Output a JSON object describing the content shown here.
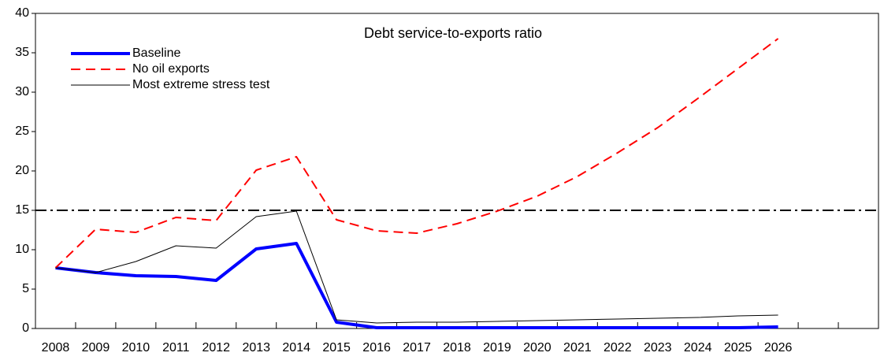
{
  "chart_data": {
    "type": "line",
    "title": "Debt service-to-exports ratio",
    "categories": [
      "2008",
      "2009",
      "2010",
      "2011",
      "2012",
      "2013",
      "2014",
      "2015",
      "2016",
      "2017",
      "2018",
      "2019",
      "2020",
      "2021",
      "2022",
      "2023",
      "2024",
      "2025",
      "2026",
      null,
      null
    ],
    "series": [
      {
        "name": "Baseline",
        "color": "#0000ff",
        "width": 4,
        "dash": "none",
        "values": [
          7.7,
          7.1,
          6.7,
          6.6,
          6.1,
          10.1,
          10.8,
          0.8,
          0.1,
          0.1,
          0.1,
          0.1,
          0.1,
          0.1,
          0.1,
          0.1,
          0.1,
          0.1,
          0.2,
          null,
          null
        ]
      },
      {
        "name": "No oil exports",
        "color": "#ff0000",
        "width": 2,
        "dash": "12 7",
        "values": [
          7.7,
          12.6,
          12.2,
          14.1,
          13.7,
          20.1,
          21.8,
          13.8,
          12.4,
          12.1,
          13.3,
          14.9,
          16.8,
          19.3,
          22.3,
          25.5,
          29.2,
          33.0,
          36.8,
          null,
          null
        ]
      },
      {
        "name": "Most extreme stress test",
        "color": "#000000",
        "width": 1,
        "dash": "none",
        "values": [
          7.7,
          7.1,
          8.5,
          10.5,
          10.2,
          14.2,
          14.9,
          1.1,
          0.7,
          0.8,
          0.8,
          0.9,
          1.0,
          1.1,
          1.2,
          1.3,
          1.4,
          1.6,
          1.7,
          null,
          null
        ]
      }
    ],
    "threshold": 15,
    "ylim": [
      0,
      40
    ],
    "yticks": [
      0,
      5,
      10,
      15,
      20,
      25,
      30,
      35,
      40
    ],
    "grid": false
  }
}
